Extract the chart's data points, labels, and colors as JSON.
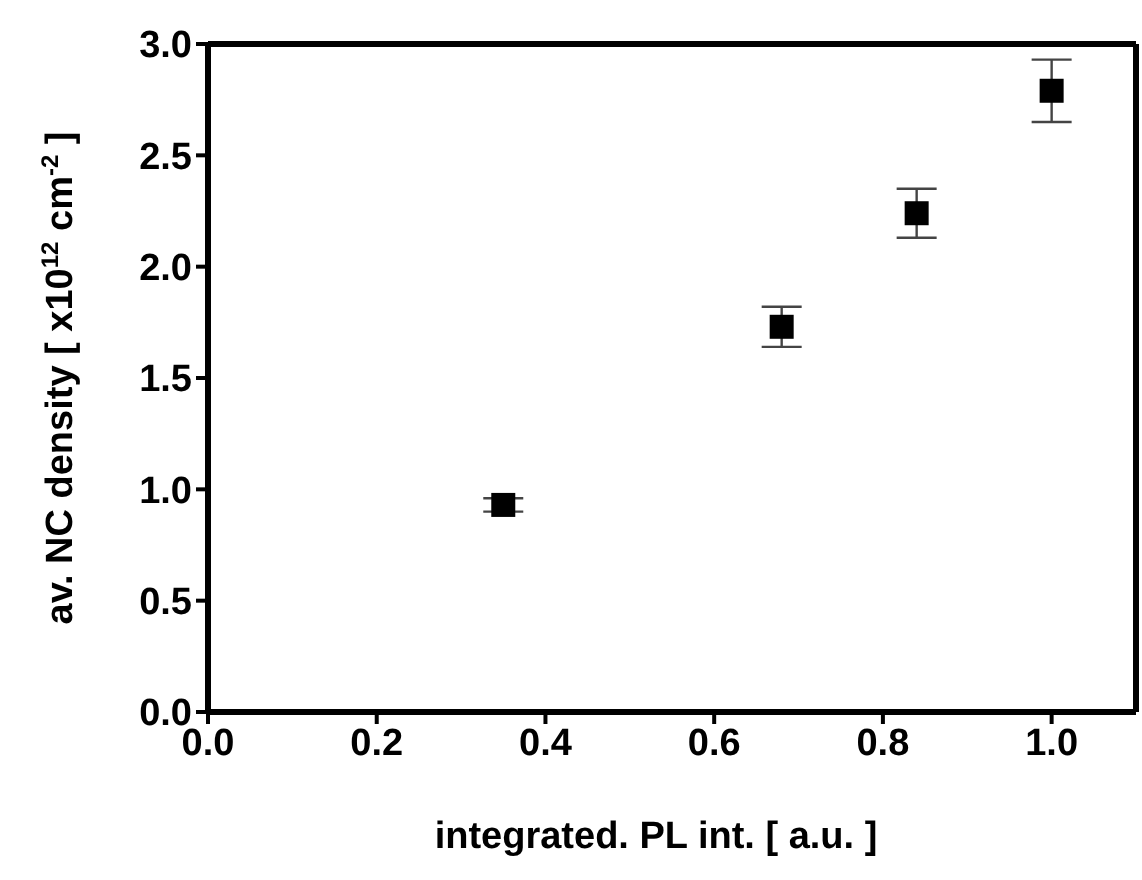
{
  "chart_data": {
    "type": "scatter",
    "xlabel": "integrated. PL int. [ a.u. ]",
    "ylabel": "av. NC density [ x10$^{12}$ cm$^{-2}$ ]",
    "x": [
      0.35,
      0.68,
      0.84,
      1.0
    ],
    "series": [
      {
        "color": "#000000",
        "values": [
          0.93,
          1.73,
          2.24,
          2.79
        ],
        "errors": [
          0.03,
          0.09,
          0.11,
          0.14
        ]
      }
    ],
    "xlim": [
      0,
      1.1
    ],
    "xticks": [
      {
        "value": 0,
        "label": "0.0"
      },
      0.2,
      0.4,
      0.6,
      0.8,
      {
        "value": 1,
        "label": "1.0"
      }
    ],
    "ylim": [
      0,
      3
    ],
    "yticks": [
      {
        "value": 0,
        "label": "0.0"
      },
      0.5,
      {
        "value": 1,
        "label": "1.0"
      },
      1.5,
      {
        "value": 2,
        "label": "2.0"
      },
      2.5,
      {
        "value": 3,
        "label": "3.0"
      }
    ],
    "marker": "square"
  }
}
